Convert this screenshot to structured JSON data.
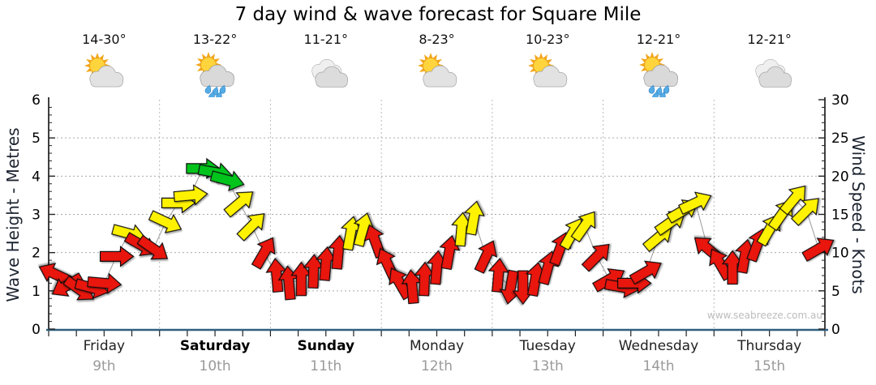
{
  "title": "7 day wind & wave forecast for Square Mile",
  "watermark": "www.seabreeze.com.au",
  "left_axis": {
    "label": "Wave Height - Metres",
    "min": 0,
    "max": 6,
    "ticks": [
      0,
      1,
      2,
      3,
      4,
      5,
      6
    ]
  },
  "right_axis": {
    "label": "Wind Speed - Knots",
    "min": 0,
    "max": 30,
    "ticks": [
      0,
      5,
      10,
      15,
      20,
      25,
      30
    ]
  },
  "days": [
    {
      "name": "Friday",
      "date": "9th",
      "temp": "14-30°",
      "icon": "sun-cloud",
      "bold": false
    },
    {
      "name": "Saturday",
      "date": "10th",
      "temp": "13-22°",
      "icon": "sun-cloud-rain",
      "bold": true
    },
    {
      "name": "Sunday",
      "date": "11th",
      "temp": "11-21°",
      "icon": "cloudy",
      "bold": true
    },
    {
      "name": "Monday",
      "date": "12th",
      "temp": "8-23°",
      "icon": "sun-cloud",
      "bold": false
    },
    {
      "name": "Tuesday",
      "date": "13th",
      "temp": "10-23°",
      "icon": "sun-cloud",
      "bold": false
    },
    {
      "name": "Wednesday",
      "date": "14th",
      "temp": "12-21°",
      "icon": "sun-cloud-rain",
      "bold": false
    },
    {
      "name": "Thursday",
      "date": "15th",
      "temp": "12-21°",
      "icon": "cloudy",
      "bold": false
    }
  ],
  "colors": {
    "arrow_red": "#E81210",
    "arrow_yellow": "#FFF200",
    "arrow_green": "#00C41E",
    "arrow_outline": "#111111",
    "bottom_axis": "#2E5F7F",
    "side_axis": "#000000",
    "gridline": "#AAAAAA",
    "day_separator": "#BBBBBB",
    "connector": "#999999",
    "day_label": "#222222",
    "date_label": "#9A9A9A",
    "watermark": "#BCBCBC"
  },
  "chart_data": {
    "type": "wind-arrow-timeseries",
    "note": "Each arrow = one forecast step; value is wind speed in knots (right axis), dir_deg is arrow rotation (0 = pointing right/east, 90 = down, -90 = up); color r=red light wind, y=yellow moderate, g=green fresh.",
    "categories": [
      "Friday 9th",
      "Saturday 10th",
      "Sunday 11th",
      "Monday 12th",
      "Tuesday 13th",
      "Wednesday 14th",
      "Thursday 15th"
    ],
    "ylim_knots": [
      0,
      30
    ],
    "ylim_metres": [
      0,
      6
    ],
    "grid": "dotted horizontal at 1-5 m and dotted vertical day separators",
    "arrow_format": [
      "knots",
      "dir_deg",
      "color"
    ],
    "series": [
      {
        "day": "Friday",
        "arrows": [
          [
            7.2,
            205,
            "r"
          ],
          [
            5.7,
            150,
            "r"
          ],
          [
            5.2,
            35,
            "r"
          ],
          [
            5.4,
            15,
            "r"
          ],
          [
            6,
            5,
            "r"
          ],
          [
            9.5,
            0,
            "r"
          ],
          [
            12.5,
            15,
            "y"
          ],
          [
            11,
            30,
            "r"
          ],
          [
            10.5,
            35,
            "r"
          ]
        ]
      },
      {
        "day": "Saturday",
        "arrows": [
          [
            14,
            25,
            "y"
          ],
          [
            16.5,
            0,
            "y"
          ],
          [
            17.5,
            -5,
            "y"
          ],
          [
            21,
            0,
            "g"
          ],
          [
            20.5,
            10,
            "g"
          ],
          [
            19.5,
            15,
            "g"
          ],
          [
            16.5,
            -40,
            "y"
          ],
          [
            13.5,
            -45,
            "y"
          ],
          [
            10,
            -60,
            "r"
          ]
        ]
      },
      {
        "day": "Sunday",
        "arrows": [
          [
            7,
            -95,
            "r"
          ],
          [
            6,
            -95,
            "r"
          ],
          [
            6.5,
            -90,
            "r"
          ],
          [
            7.5,
            -88,
            "r"
          ],
          [
            8.5,
            -85,
            "r"
          ],
          [
            10,
            -85,
            "r"
          ],
          [
            12.5,
            -80,
            "y"
          ],
          [
            13,
            -75,
            "y"
          ],
          [
            11.5,
            -110,
            "r"
          ]
        ]
      },
      {
        "day": "Monday",
        "arrows": [
          [
            8.5,
            -115,
            "r"
          ],
          [
            6,
            -120,
            "r"
          ],
          [
            5.5,
            -95,
            "r"
          ],
          [
            6.5,
            -88,
            "r"
          ],
          [
            8,
            -85,
            "r"
          ],
          [
            10,
            -80,
            "r"
          ],
          [
            13,
            -85,
            "y"
          ],
          [
            14.5,
            -80,
            "y"
          ],
          [
            9.5,
            -65,
            "r"
          ]
        ]
      },
      {
        "day": "Tuesday",
        "arrows": [
          [
            7,
            -85,
            "r"
          ],
          [
            5.5,
            100,
            "r"
          ],
          [
            5.5,
            90,
            "r"
          ],
          [
            6.5,
            -80,
            "r"
          ],
          [
            8,
            -75,
            "r"
          ],
          [
            10.5,
            -70,
            "r"
          ],
          [
            12.5,
            -60,
            "y"
          ],
          [
            13.5,
            -55,
            "y"
          ],
          [
            9.5,
            -45,
            "r"
          ]
        ]
      },
      {
        "day": "Wednesday",
        "arrows": [
          [
            6.5,
            -30,
            "r"
          ],
          [
            5.5,
            10,
            "r"
          ],
          [
            6,
            0,
            "r"
          ],
          [
            7.5,
            -30,
            "r"
          ],
          [
            12,
            -40,
            "y"
          ],
          [
            14,
            -35,
            "y"
          ],
          [
            15.5,
            -30,
            "y"
          ],
          [
            16.5,
            -25,
            "y"
          ],
          [
            10.5,
            -140,
            "r"
          ]
        ]
      },
      {
        "day": "Thursday",
        "arrows": [
          [
            8.5,
            -120,
            "r"
          ],
          [
            8,
            -90,
            "r"
          ],
          [
            9.5,
            -80,
            "r"
          ],
          [
            11,
            -70,
            "r"
          ],
          [
            13,
            -60,
            "y"
          ],
          [
            15,
            -55,
            "y"
          ],
          [
            17,
            -50,
            "y"
          ],
          [
            15.5,
            -45,
            "y"
          ],
          [
            10.5,
            -30,
            "r"
          ]
        ]
      }
    ]
  }
}
